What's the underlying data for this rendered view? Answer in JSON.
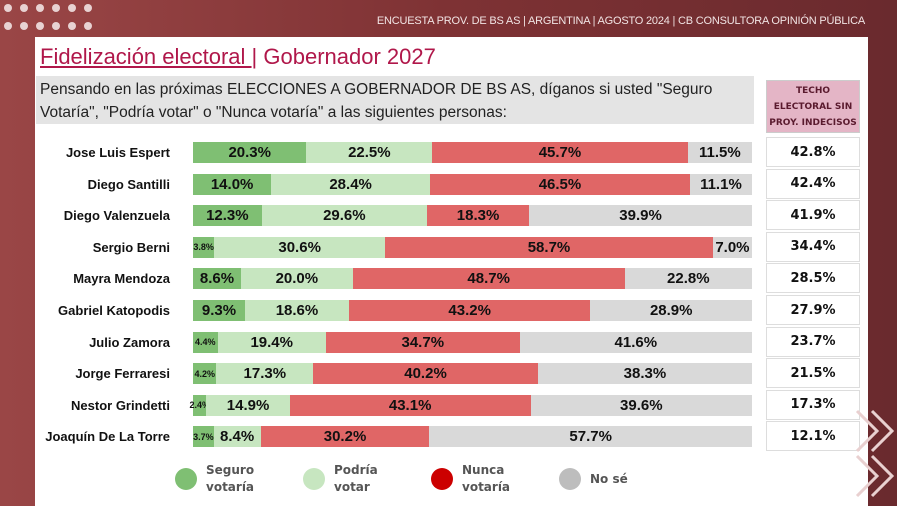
{
  "header": {
    "topline": "ENCUESTA PROV. DE BS AS |  ARGENTINA  | AGOSTO  2024 | CB CONSULTORA OPINIÓN PÚBLICA",
    "title_a": "Fidelización electoral ",
    "title_sep": "|",
    "title_b": " Gobernador 2027",
    "question": "Pensando en las próximas ELECCIONES A GOBERNADOR DE BS AS, díganos si usted \"Seguro Votaría\", \"Podría votar\" o \"Nunca votaría\" a las siguientes personas:",
    "techo_header": "TECHO ELECTORAL SIN PROY. INDECISOS"
  },
  "colors": {
    "seguro": "#7fbf73",
    "podria": "#c7e6c0",
    "nunca": "#e06666",
    "nose": "#d9d9d9",
    "legend_nunca": "#cc0000",
    "legend_nose": "#bdbdbd"
  },
  "chart_data": {
    "type": "bar",
    "stacked": true,
    "orientation": "horizontal",
    "categories": [
      "Jose Luis Espert",
      "Diego Santilli",
      "Diego Valenzuela",
      "Sergio Berni",
      "Mayra Mendoza",
      "Gabriel Katopodis",
      "Julio Zamora",
      "Jorge Ferraresi",
      "Nestor Grindetti",
      "Joaquín De La Torre"
    ],
    "series": [
      {
        "name": "Seguro votaría",
        "values": [
          20.3,
          14.0,
          12.3,
          3.8,
          8.6,
          9.3,
          4.4,
          4.2,
          2.4,
          3.7
        ]
      },
      {
        "name": "Podría votar",
        "values": [
          22.5,
          28.4,
          29.6,
          30.6,
          20.0,
          18.6,
          19.4,
          17.3,
          14.9,
          8.4
        ]
      },
      {
        "name": "Nunca votaría",
        "values": [
          45.7,
          46.5,
          18.3,
          58.7,
          48.7,
          43.2,
          34.7,
          40.2,
          43.1,
          30.2
        ]
      },
      {
        "name": "No sé",
        "values": [
          11.5,
          11.1,
          39.9,
          7.0,
          22.8,
          28.9,
          41.6,
          38.3,
          39.6,
          57.7
        ]
      }
    ],
    "techo": [
      42.8,
      42.4,
      41.9,
      34.4,
      28.5,
      27.9,
      23.7,
      21.5,
      17.3,
      12.1
    ]
  },
  "legend": [
    {
      "l1": "Seguro",
      "l2": "votaría"
    },
    {
      "l1": "Podría",
      "l2": "votar"
    },
    {
      "l1": "Nunca",
      "l2": "votaría"
    },
    {
      "l1": "No sé",
      "l2": ""
    }
  ]
}
